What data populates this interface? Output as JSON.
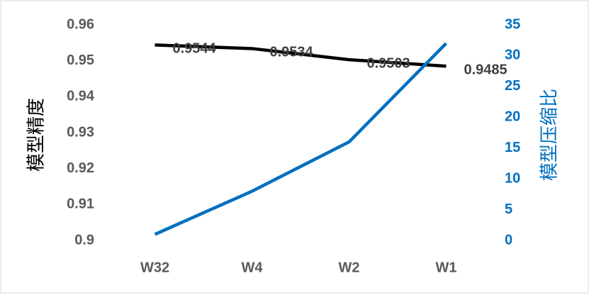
{
  "chart_data": {
    "type": "line",
    "categories": [
      "W32",
      "W4",
      "W2",
      "W1"
    ],
    "series": [
      {
        "color": "#000000",
        "values": [
          0.9544,
          0.9534,
          0.9503,
          0.9485
        ]
      },
      {
        "color": "#0070c0",
        "values": [
          1,
          8,
          16,
          32
        ],
        "axis": "y2"
      }
    ],
    "ylabel": "模型精度",
    "y2label": "模型压缩比",
    "ylim": [
      0.9,
      0.96
    ],
    "yticks": [
      0.9,
      0.91,
      0.92,
      0.93,
      0.94,
      0.95,
      0.96
    ],
    "y2lim": [
      0,
      35
    ],
    "y2ticks": [
      0,
      5,
      10,
      15,
      20,
      25,
      30,
      35
    ],
    "grid": false
  }
}
